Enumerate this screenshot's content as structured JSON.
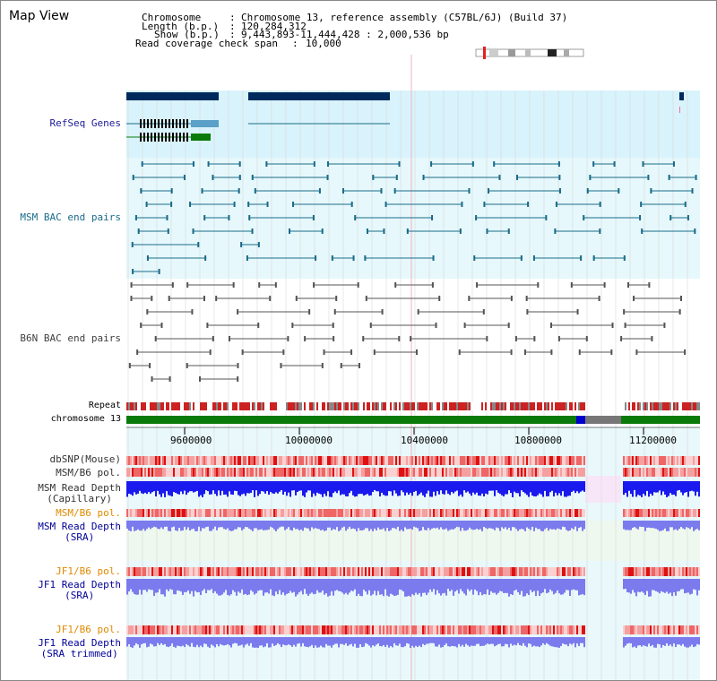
{
  "header": {
    "title": "Map View",
    "chromosome_label": "Chromosome",
    "chromosome_value": "Chromosome 13, reference assembly (C57BL/6J) (Build 37)",
    "length_label": "Length (b.p.)",
    "length_value": "120,284,312",
    "show_label": "Show (b.p.)",
    "show_value": "9,443,893-11,444,428 : 2,000,536 bp",
    "span_label": "Read coverage check span",
    "span_value": "10,000"
  },
  "tracks": {
    "refseq": "RefSeq Genes",
    "msm_bac": "MSM BAC end pairs",
    "b6n_bac": "B6N BAC end pairs",
    "repeat": "Repeat",
    "chromosome": "chromosome 13",
    "dbsnp": "dbSNP(Mouse)",
    "msm_b6_pol_1": "MSM/B6 pol.",
    "msm_depth_cap_1": "MSM Read Depth",
    "msm_depth_cap_2": "(Capillary)",
    "msm_b6_pol_2": "MSM/B6 pol.",
    "msm_depth_sra_1": "MSM Read Depth",
    "msm_depth_sra_2": "(SRA)",
    "jf1_b6_pol_1": "JF1/B6 pol.",
    "jf1_depth_sra_1": "JF1 Read Depth",
    "jf1_depth_sra_2": "(SRA)",
    "jf1_b6_pol_2": "JF1/B6 pol.",
    "jf1_trim_1": "JF1 Read Depth",
    "jf1_trim_2": "(SRA trimmed)"
  },
  "axis": {
    "ticks": [
      "9600000",
      "10000000",
      "10400000",
      "10800000",
      "11200000"
    ]
  },
  "colors": {
    "link_blue": "#1a1a99",
    "msm_teal": "#1a6b8a",
    "b6n_gray": "#404040",
    "orange": "#e08a00",
    "navy": "#000099",
    "refseq_bg": "#d8f3fb",
    "bac_bg": "#e6f8fb",
    "depth_blue": "#1a1aee",
    "depth_light": "#7b7bee",
    "chrom_green": "#0a7a0a",
    "repeat_red": "#cc2222"
  }
}
